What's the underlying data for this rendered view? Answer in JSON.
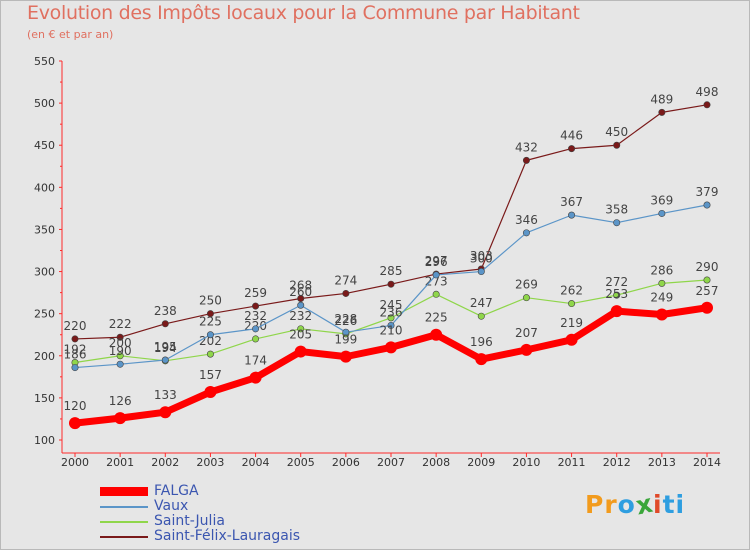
{
  "title": "Evolution des Impôts locaux pour la Commune par Habitant",
  "subtitle": "(en € et par an)",
  "logo": {
    "parts": [
      "Pr",
      "o",
      "x",
      "i",
      "ti"
    ],
    "colors": [
      "#f29b1d",
      "#2e9ee0",
      "#3aa63a",
      "#e04a2a",
      "#2e9ee0"
    ]
  },
  "chart_data": {
    "type": "line",
    "x": [
      "2000",
      "2001",
      "2002",
      "2003",
      "2004",
      "2005",
      "2006",
      "2007",
      "2008",
      "2009",
      "2010",
      "2011",
      "2012",
      "2013",
      "2014"
    ],
    "ylim": [
      100,
      550
    ],
    "yticks": [
      "100",
      "150",
      "200",
      "250",
      "300",
      "350",
      "400",
      "450",
      "500",
      "550"
    ],
    "grid": false,
    "legend_position": "bottom-left",
    "series": [
      {
        "name": "FALGA",
        "color": "#ff0000",
        "values": [
          120,
          126,
          133,
          157,
          174,
          205,
          199,
          210,
          225,
          196,
          207,
          219,
          253,
          249,
          257
        ],
        "labels": [
          "120",
          "126",
          "133",
          "157",
          "174",
          "205",
          "199",
          "210",
          "225",
          "196",
          "207",
          "219",
          "253",
          "249",
          "257"
        ]
      },
      {
        "name": "Vaux",
        "color": "#5b95c8",
        "values": [
          186,
          190,
          195,
          225,
          232,
          260,
          228,
          236,
          296,
          300,
          346,
          367,
          358,
          369,
          379
        ],
        "labels": [
          "186",
          "190",
          "195",
          "225",
          "232",
          "260",
          "228",
          "236",
          "296",
          "300",
          "346",
          "367",
          "358",
          "369",
          "379"
        ]
      },
      {
        "name": "Saint-Julia",
        "color": "#8fd64a",
        "values": [
          192,
          200,
          194,
          202,
          220,
          232,
          226,
          245,
          273,
          247,
          269,
          262,
          272,
          286,
          290
        ],
        "labels": [
          "192",
          "200",
          "194",
          "202",
          "220",
          "232",
          "226",
          "245",
          "273",
          "247",
          "269",
          "262",
          "272",
          "286",
          "290"
        ]
      },
      {
        "name": "Saint-Félix-Lauragais",
        "color": "#7a1a1a",
        "values": [
          220,
          222,
          238,
          250,
          259,
          268,
          274,
          285,
          297,
          303,
          432,
          446,
          450,
          489,
          498
        ],
        "labels": [
          "220",
          "222",
          "238",
          "250",
          "259",
          "268",
          "274",
          "285",
          "297",
          "303",
          "432",
          "446",
          "450",
          "489",
          "498"
        ]
      }
    ]
  }
}
